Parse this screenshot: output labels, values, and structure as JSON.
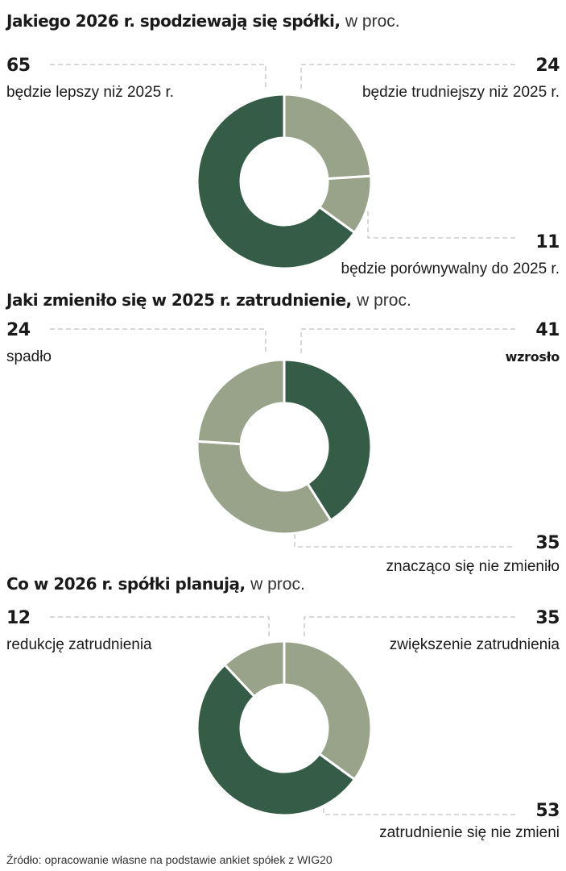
{
  "chart_data": [
    {
      "type": "pie",
      "title": "Jakiego 2026 r. spodziewają się spółki,",
      "unit": "w proc.",
      "colors": [
        "#98a38a",
        "#98a38a",
        "#345c47"
      ],
      "slices": [
        {
          "value": 24,
          "value_label": "24",
          "label": "będzie trudniejszy niż 2025 r."
        },
        {
          "value": 11,
          "value_label": "11",
          "label": "będzie porównywalny do 2025 r."
        },
        {
          "value": 65,
          "value_label": "65",
          "label": "będzie lepszy niż 2025 r."
        }
      ]
    },
    {
      "type": "pie",
      "title": "Jaki zmieniło się w 2025 r. zatrudnienie,",
      "unit": "w proc.",
      "colors": [
        "#345c47",
        "#98a38a",
        "#98a38a"
      ],
      "slices": [
        {
          "value": 41,
          "value_label": "41",
          "label": "wzrosło"
        },
        {
          "value": 35,
          "value_label": "35",
          "label": "znacząco się nie zmieniło"
        },
        {
          "value": 24,
          "value_label": "24",
          "label": "spadło"
        }
      ]
    },
    {
      "type": "pie",
      "title": "Co w 2026 r. spółki planują,",
      "unit": "w proc.",
      "colors": [
        "#98a38a",
        "#345c47",
        "#98a38a"
      ],
      "slices": [
        {
          "value": 35,
          "value_label": "35",
          "label": "zwiększenie zatrudnienia"
        },
        {
          "value": 53,
          "value_label": "53",
          "label": "zatrudnienie się nie zmieni"
        },
        {
          "value": 12,
          "value_label": "12",
          "label": "redukcję zatrudnienia"
        }
      ]
    }
  ],
  "source": "Źródło: opracowanie własne na podstawie ankiet spółek z WIG20"
}
